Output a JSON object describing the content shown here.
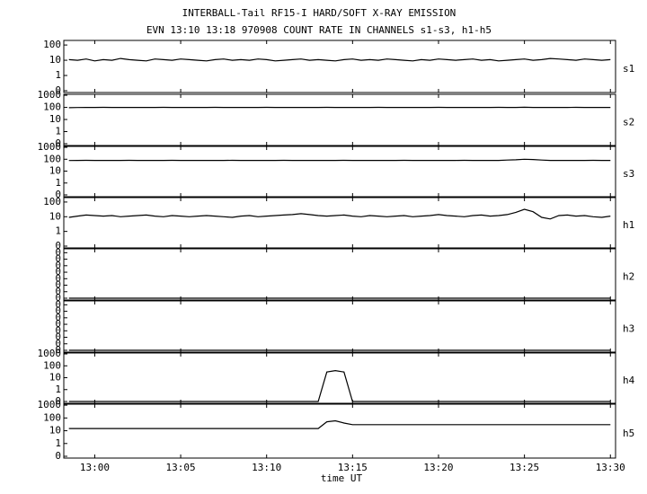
{
  "chart_data": {
    "type": "line",
    "title": "INTERBALL-Tail RF15-I HARD/SOFT X-RAY EMISSION",
    "subtitle": "EVN 13:10 13:18 970908  COUNT RATE IN CHANNELS s1-s3, h1-h5",
    "x_label": "time UT",
    "xlim": [
      778.2,
      810.3
    ],
    "xticks": [
      {
        "value": 780,
        "label": "13:00"
      },
      {
        "value": 785,
        "label": "13:05"
      },
      {
        "value": 790,
        "label": "13:10"
      },
      {
        "value": 795,
        "label": "13:15"
      },
      {
        "value": 800,
        "label": "13:20"
      },
      {
        "value": 805,
        "label": "13:25"
      },
      {
        "value": 810,
        "label": "13:30"
      }
    ],
    "x": [
      778.5,
      779,
      779.5,
      780,
      780.5,
      781,
      781.5,
      782,
      782.5,
      783,
      783.5,
      784,
      784.5,
      785,
      785.5,
      786,
      786.5,
      787,
      787.5,
      788,
      788.5,
      789,
      789.5,
      790,
      790.5,
      791,
      791.5,
      792,
      792.5,
      793,
      793.5,
      794,
      794.5,
      795,
      795.5,
      796,
      796.5,
      797,
      797.5,
      798,
      798.5,
      799,
      799.5,
      800,
      800.5,
      801,
      801.5,
      802,
      802.5,
      803,
      803.5,
      804,
      804.5,
      805,
      805.5,
      806,
      806.5,
      807,
      807.5,
      808,
      808.5,
      809,
      809.5,
      810
    ],
    "series": [
      {
        "name": "s1",
        "color": "#000000",
        "scale": "log",
        "ylim": [
          0,
          200
        ],
        "yticks": [
          100,
          10,
          1,
          0
        ],
        "values": [
          11,
          10,
          12,
          9,
          11,
          10,
          13,
          11,
          10,
          9,
          12,
          11,
          10,
          12,
          11,
          10,
          9,
          11,
          12,
          10,
          11,
          10,
          12,
          11,
          9,
          10,
          11,
          12,
          10,
          11,
          10,
          9,
          11,
          12,
          10,
          11,
          10,
          12,
          11,
          10,
          9,
          11,
          10,
          12,
          11,
          10,
          11,
          12,
          10,
          11,
          9,
          10,
          11,
          12,
          10,
          11,
          13,
          12,
          11,
          10,
          12,
          11,
          10,
          11
        ]
      },
      {
        "name": "s2",
        "color": "#000000",
        "scale": "log",
        "ylim": [
          0,
          1200
        ],
        "yticks": [
          1000,
          100,
          10,
          1,
          0
        ],
        "values": [
          95,
          98,
          100,
          100,
          101,
          99,
          100,
          100,
          100,
          99,
          100,
          101,
          100,
          100,
          99,
          100,
          100,
          101,
          100,
          99,
          100,
          100,
          100,
          101,
          100,
          99,
          100,
          100,
          100,
          100,
          101,
          100,
          99,
          100,
          100,
          100,
          101,
          100,
          100,
          99,
          100,
          100,
          100,
          101,
          100,
          100,
          99,
          100,
          100,
          100,
          101,
          100,
          100,
          102,
          100,
          100,
          99,
          100,
          100,
          101,
          100,
          100,
          99,
          100
        ]
      },
      {
        "name": "s3",
        "color": "#000000",
        "scale": "log",
        "ylim": [
          0,
          1200
        ],
        "yticks": [
          1000,
          100,
          10,
          1,
          0
        ],
        "values": [
          78,
          80,
          81,
          80,
          79,
          80,
          80,
          81,
          80,
          79,
          80,
          80,
          81,
          80,
          80,
          79,
          80,
          80,
          80,
          81,
          80,
          79,
          80,
          80,
          80,
          81,
          80,
          80,
          79,
          80,
          80,
          80,
          81,
          80,
          80,
          79,
          80,
          80,
          80,
          81,
          80,
          80,
          79,
          80,
          80,
          80,
          81,
          80,
          80,
          80,
          79,
          85,
          90,
          100,
          95,
          85,
          80,
          80,
          79,
          80,
          80,
          81,
          80,
          80
        ]
      },
      {
        "name": "h1",
        "color": "#000000",
        "scale": "log",
        "ylim": [
          0,
          200
        ],
        "yticks": [
          100,
          10,
          1,
          0
        ],
        "values": [
          9,
          11,
          13,
          12,
          11,
          12,
          10,
          11,
          12,
          13,
          11,
          10,
          12,
          11,
          10,
          11,
          12,
          11,
          10,
          9,
          11,
          12,
          10,
          11,
          12,
          13,
          14,
          16,
          14,
          12,
          11,
          12,
          13,
          11,
          10,
          12,
          11,
          10,
          11,
          12,
          10,
          11,
          12,
          14,
          12,
          11,
          10,
          12,
          13,
          11,
          12,
          14,
          20,
          32,
          22,
          9,
          7,
          12,
          13,
          11,
          12,
          10,
          9,
          11
        ]
      },
      {
        "name": "h2",
        "color": "#000000",
        "scale": "linear",
        "ylim": [
          0,
          7.6
        ],
        "yticks": [
          {
            "value": 0,
            "label": "0"
          },
          {
            "value": 1,
            "label": "0"
          },
          {
            "value": 2,
            "label": "0"
          },
          {
            "value": 3,
            "label": "0"
          },
          {
            "value": 4,
            "label": "0"
          },
          {
            "value": 5,
            "label": "0"
          },
          {
            "value": 6,
            "label": "0"
          },
          {
            "value": 7,
            "label": "0"
          }
        ],
        "values": [
          0,
          0,
          0,
          0,
          0,
          0,
          0,
          0,
          0,
          0,
          0,
          0,
          0,
          0,
          0,
          0,
          0,
          0,
          0,
          0,
          0,
          0,
          0,
          0,
          0,
          0,
          0,
          0,
          0,
          0,
          0,
          0,
          0,
          0,
          0,
          0,
          0,
          0,
          0,
          0,
          0,
          0,
          0,
          0,
          0,
          0,
          0,
          0,
          0,
          0,
          0,
          0,
          0,
          0,
          0,
          0,
          0,
          0,
          0,
          0,
          0,
          0,
          0,
          0
        ]
      },
      {
        "name": "h3",
        "color": "#000000",
        "scale": "linear",
        "ylim": [
          0,
          7.6
        ],
        "yticks": [
          {
            "value": 0,
            "label": "0"
          },
          {
            "value": 1,
            "label": "0"
          },
          {
            "value": 2,
            "label": "0"
          },
          {
            "value": 3,
            "label": "0"
          },
          {
            "value": 4,
            "label": "0"
          },
          {
            "value": 5,
            "label": "0"
          },
          {
            "value": 6,
            "label": "0"
          },
          {
            "value": 7,
            "label": "0"
          }
        ],
        "values": [
          0,
          0,
          0,
          0,
          0,
          0,
          0,
          0,
          0,
          0,
          0,
          0,
          0,
          0,
          0,
          0,
          0,
          0,
          0,
          0,
          0,
          0,
          0,
          0,
          0,
          0,
          0,
          0,
          0,
          0,
          0,
          0,
          0,
          0,
          0,
          0,
          0,
          0,
          0,
          0,
          0,
          0,
          0,
          0,
          0,
          0,
          0,
          0,
          0,
          0,
          0,
          0,
          0,
          0,
          0,
          0,
          0,
          0,
          0,
          0,
          0,
          0,
          0,
          0
        ]
      },
      {
        "name": "h4",
        "color": "#000000",
        "scale": "log",
        "ylim": [
          0,
          1200
        ],
        "yticks": [
          1000,
          100,
          10,
          1,
          0
        ],
        "values": [
          0,
          0,
          0,
          0,
          0,
          0,
          0,
          0,
          0,
          0,
          0,
          0,
          0,
          0,
          0,
          0,
          0,
          0,
          0,
          0,
          0,
          0,
          0,
          0,
          0,
          0,
          0,
          0,
          0,
          0,
          30,
          40,
          30,
          0,
          0,
          0,
          0,
          0,
          0,
          0,
          0,
          0,
          0,
          0,
          0,
          0,
          0,
          0,
          0,
          0,
          0,
          0,
          0,
          0,
          0,
          0,
          0,
          0,
          0,
          0,
          0,
          0,
          0,
          0
        ]
      },
      {
        "name": "h5",
        "color": "#000000",
        "scale": "log",
        "ylim": [
          0,
          1200
        ],
        "yticks": [
          1000,
          100,
          10,
          1,
          0
        ],
        "values": [
          15,
          15,
          15,
          15,
          15,
          15,
          15,
          15,
          15,
          15,
          15,
          15,
          15,
          15,
          15,
          15,
          15,
          15,
          15,
          15,
          15,
          15,
          15,
          15,
          15,
          15,
          15,
          15,
          15,
          15,
          50,
          60,
          40,
          30,
          30,
          30,
          30,
          30,
          30,
          30,
          30,
          30,
          30,
          30,
          30,
          30,
          30,
          30,
          30,
          30,
          30,
          30,
          30,
          30,
          30,
          30,
          30,
          30,
          30,
          30,
          30,
          30,
          30,
          30
        ]
      }
    ]
  }
}
